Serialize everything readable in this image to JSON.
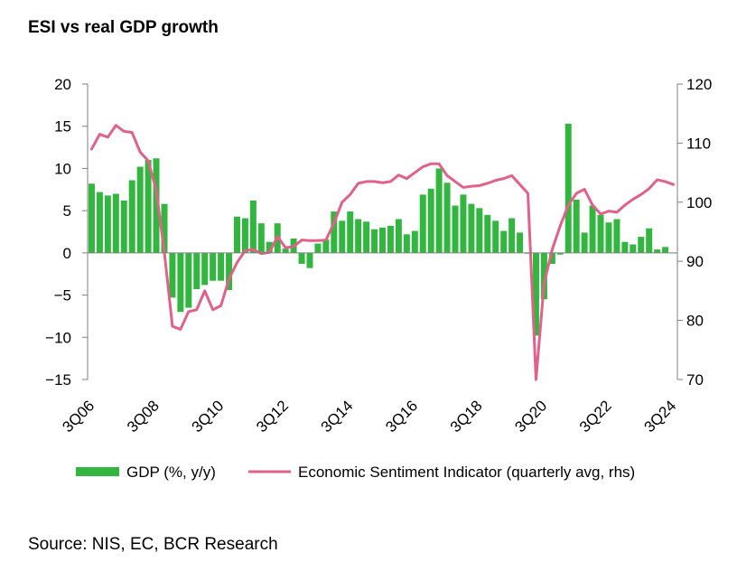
{
  "title": "ESI vs real GDP growth",
  "source": "Source: NIS, EC, BCR Research",
  "colors": {
    "gdp_bar": "#33b640",
    "esi_line": "#e1618a",
    "axis": "#7f7f7f"
  },
  "chart_data": {
    "type": "bar+line",
    "title": "ESI vs real GDP growth",
    "categories": [
      "3Q06",
      "4Q06",
      "1Q07",
      "2Q07",
      "3Q07",
      "4Q07",
      "1Q08",
      "2Q08",
      "3Q08",
      "4Q08",
      "1Q09",
      "2Q09",
      "3Q09",
      "4Q09",
      "1Q10",
      "2Q10",
      "3Q10",
      "4Q10",
      "1Q11",
      "2Q11",
      "3Q11",
      "4Q11",
      "1Q12",
      "2Q12",
      "3Q12",
      "4Q12",
      "1Q13",
      "2Q13",
      "3Q13",
      "4Q13",
      "1Q14",
      "2Q14",
      "3Q14",
      "4Q14",
      "1Q15",
      "2Q15",
      "3Q15",
      "4Q15",
      "1Q16",
      "2Q16",
      "3Q16",
      "4Q16",
      "1Q17",
      "2Q17",
      "3Q17",
      "4Q17",
      "1Q18",
      "2Q18",
      "3Q18",
      "4Q18",
      "1Q19",
      "2Q19",
      "3Q19",
      "4Q19",
      "1Q20",
      "2Q20",
      "3Q20",
      "4Q20",
      "1Q21",
      "2Q21",
      "3Q21",
      "4Q21",
      "1Q22",
      "2Q22",
      "3Q22",
      "4Q22",
      "1Q23",
      "2Q23",
      "3Q23",
      "4Q23",
      "1Q24",
      "2Q24",
      "3Q24"
    ],
    "x_tick_labels": [
      "3Q06",
      "3Q08",
      "3Q10",
      "3Q12",
      "3Q14",
      "3Q16",
      "3Q18",
      "3Q20",
      "3Q22",
      "3Q24"
    ],
    "series": [
      {
        "name": "GDP (%, y/y)",
        "type": "bar",
        "axis": "left",
        "values": [
          8.2,
          7.2,
          6.8,
          7.0,
          6.2,
          8.6,
          10.2,
          11.0,
          11.2,
          5.8,
          -5.3,
          -7.0,
          -6.5,
          -4.3,
          -3.8,
          -3.3,
          -3.3,
          -4.4,
          4.3,
          4.1,
          6.2,
          3.5,
          1.3,
          3.5,
          0.5,
          1.7,
          -1.3,
          -1.8,
          1.1,
          1.6,
          4.9,
          3.8,
          4.9,
          4.0,
          3.7,
          2.8,
          3.0,
          3.2,
          4.0,
          2.2,
          2.6,
          6.9,
          7.6,
          10.0,
          8.3,
          5.6,
          6.9,
          5.8,
          5.3,
          4.5,
          3.8,
          2.6,
          4.1,
          2.4,
          -0.1,
          -9.8,
          -5.5,
          -1.3,
          -0.2,
          15.3,
          6.3,
          2.4,
          5.6,
          4.5,
          3.6,
          4.0,
          1.3,
          1.0,
          1.9,
          2.9,
          0.4,
          0.7,
          0.0
        ]
      },
      {
        "name": "Economic Sentiment Indicator (quarterly avg, rhs)",
        "type": "line",
        "axis": "right",
        "values": [
          109.0,
          111.5,
          111.0,
          113.0,
          112.0,
          111.8,
          108.5,
          107.0,
          102.0,
          91.5,
          79.0,
          78.5,
          81.5,
          81.8,
          85.0,
          81.8,
          82.5,
          87.0,
          89.8,
          91.8,
          92.0,
          91.3,
          91.5,
          94.2,
          92.3,
          92.5,
          93.6,
          93.5,
          93.5,
          93.6,
          96.5,
          100.0,
          101.3,
          103.2,
          103.5,
          103.5,
          103.3,
          103.5,
          104.6,
          104.0,
          105.0,
          106.0,
          106.5,
          106.5,
          104.5,
          103.5,
          102.5,
          102.7,
          102.8,
          103.2,
          103.7,
          104.0,
          104.5,
          103.0,
          101.5,
          70.0,
          86.2,
          92.0,
          96.0,
          99.5,
          101.5,
          102.2,
          99.5,
          98.0,
          98.5,
          98.3,
          99.5,
          100.5,
          101.3,
          102.3,
          103.8,
          103.5,
          103.0
        ]
      }
    ],
    "y_left": {
      "ylim": [
        -15,
        20
      ],
      "ticks": [
        -15,
        -10,
        -5,
        0,
        5,
        10,
        15,
        20
      ]
    },
    "y_right": {
      "ylim": [
        70,
        120
      ],
      "ticks": [
        70,
        80,
        90,
        100,
        110,
        120
      ]
    },
    "legend": {
      "position": "bottom"
    },
    "grid": false
  }
}
